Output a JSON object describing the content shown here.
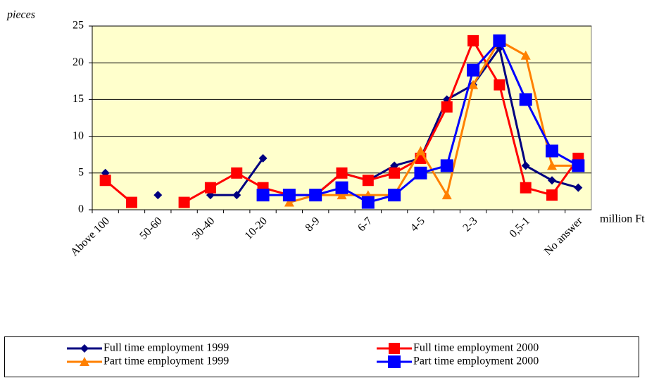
{
  "chart_data": {
    "type": "line",
    "y_label": "pieces",
    "x_label": "million Ft",
    "categories": [
      "Above 100",
      null,
      "50-60",
      null,
      "30-40",
      null,
      "10-20",
      null,
      "8-9",
      null,
      "6-7",
      null,
      "4-5",
      null,
      "2-3",
      null,
      "0,5-1",
      null,
      "No answer"
    ],
    "series": [
      {
        "name": "Full time employment 1999",
        "color": "#000080",
        "marker": "diamond",
        "values": [
          5,
          null,
          2,
          null,
          2,
          2,
          7,
          null,
          2,
          5,
          4,
          6,
          7,
          15,
          17,
          22,
          6,
          4,
          3
        ]
      },
      {
        "name": "Full time employment 2000",
        "color": "#ff0000",
        "marker": "square",
        "values": [
          4,
          1,
          null,
          1,
          3,
          5,
          3,
          2,
          2,
          5,
          4,
          5,
          7,
          14,
          23,
          17,
          3,
          2,
          7
        ]
      },
      {
        "name": "Part time employment 1999",
        "color": "#ff8000",
        "marker": "triangle",
        "values": [
          null,
          null,
          null,
          null,
          null,
          null,
          null,
          1,
          2,
          2,
          2,
          2,
          8,
          2,
          17,
          23,
          21,
          6,
          6
        ]
      },
      {
        "name": "Part time employment 2000",
        "color": "#0000ff",
        "marker": "bigsquare",
        "values": [
          null,
          null,
          null,
          null,
          null,
          null,
          2,
          2,
          2,
          3,
          1,
          2,
          5,
          6,
          19,
          23,
          15,
          8,
          6
        ]
      }
    ],
    "ylim": [
      0,
      25
    ],
    "yticks": [
      0,
      5,
      10,
      15,
      20,
      25
    ],
    "grid": true,
    "plot_background": "#ffffcc"
  }
}
